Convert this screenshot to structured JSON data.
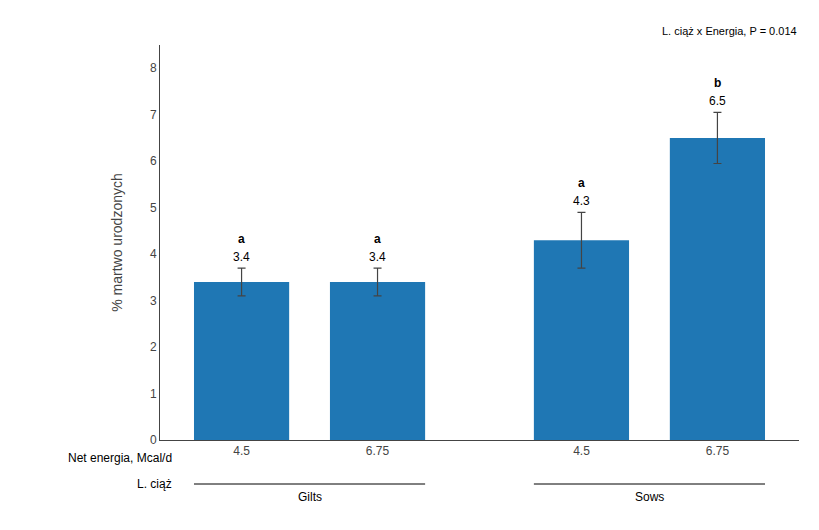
{
  "chart_data": {
    "type": "bar",
    "categories": [
      "4.5",
      "6.75",
      "4.5",
      "6.75"
    ],
    "values": [
      3.4,
      3.4,
      4.3,
      6.5
    ],
    "errors": [
      0.3,
      0.3,
      0.6,
      0.55
    ],
    "data_labels": true,
    "letters": [
      "a",
      "a",
      "a",
      "b"
    ],
    "ylabel": "% martwo urodzonych",
    "xlabel": "Net energia, Mcal/d",
    "group_title": "L. ciąż",
    "groups": [
      "Gilts",
      "Sows"
    ],
    "annotation": "L. ciąż x Energia, P = 0.014",
    "ylim": [
      0,
      8.5
    ],
    "yticks": [
      0,
      1,
      2,
      3,
      4,
      5,
      6,
      7,
      8
    ],
    "grid": false
  }
}
